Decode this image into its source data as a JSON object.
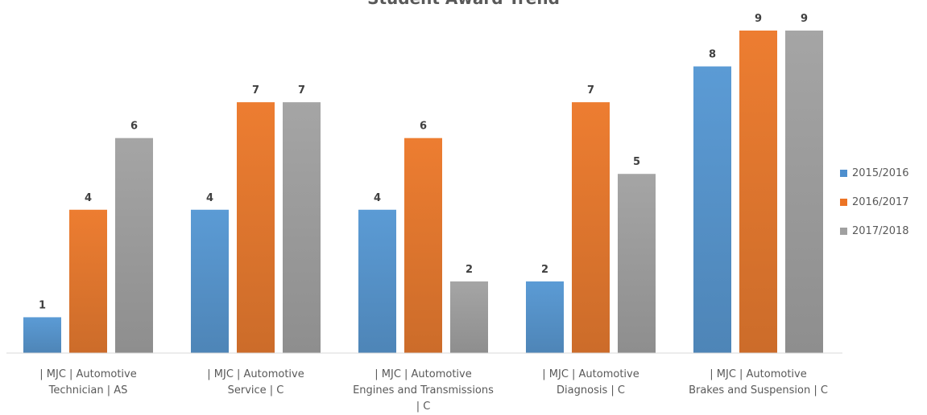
{
  "chart_data": {
    "type": "bar",
    "title": "Student Award Trend",
    "categories": [
      "| MJC | Automotive Technician | AS",
      "| MJC | Automotive Service | C",
      "| MJC | Automotive Engines and Transmissions | C",
      "| MJC | Automotive Diagnosis | C",
      "| MJC | Automotive Brakes and Suspension | C"
    ],
    "category_lines": [
      [
        "| MJC | Automotive",
        "Technician | AS"
      ],
      [
        "| MJC | Automotive",
        "Service | C"
      ],
      [
        "| MJC | Automotive",
        "Engines and Transmissions",
        "| C"
      ],
      [
        "| MJC | Automotive",
        "Diagnosis | C"
      ],
      [
        "| MJC | Automotive",
        "Brakes and Suspension | C"
      ]
    ],
    "series": [
      {
        "name": "2015/2016",
        "color": "#5B9BD5",
        "values": [
          1,
          4,
          4,
          2,
          8
        ]
      },
      {
        "name": "2016/2017",
        "color": "#ED7D31",
        "values": [
          4,
          7,
          6,
          7,
          9
        ]
      },
      {
        "name": "2017/2018",
        "color": "#A5A5A5",
        "values": [
          6,
          7,
          2,
          5,
          9
        ]
      }
    ],
    "ylim": [
      0,
      9
    ],
    "data_labels": true,
    "grid": false,
    "legend_position": "right",
    "xlabel": "",
    "ylabel": ""
  }
}
